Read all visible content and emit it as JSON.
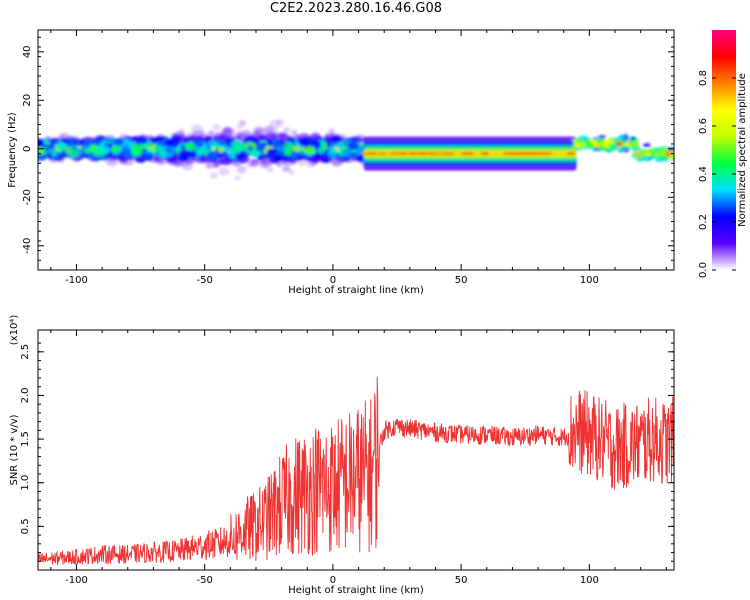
{
  "title": "C2E2.2023.280.16.46.G08",
  "chart_data": [
    {
      "type": "heatmap",
      "xlabel": "Height of straight line (km)",
      "ylabel": "Frequency (Hz)",
      "xlim": [
        -115,
        133
      ],
      "ylim": [
        -50,
        49
      ],
      "x_ticks": [
        -100,
        -50,
        0,
        50,
        100
      ],
      "y_ticks": [
        -40,
        -20,
        0,
        20,
        40
      ],
      "colorbar": {
        "label": "Normalized spectral amplitude",
        "range": [
          0.0,
          1.0
        ],
        "ticks": [
          0.0,
          0.2,
          0.4,
          0.6,
          0.8
        ],
        "tick_labels": [
          "0.0",
          "0.2",
          "0.4",
          "0.6",
          "0.8"
        ],
        "colormap": [
          "#ffffff",
          "#5b00ff",
          "#0000ff",
          "#00e0ff",
          "#00ff40",
          "#c0ff00",
          "#ffff00",
          "#ff8000",
          "#ff0000",
          "#ff0080"
        ]
      },
      "ridge": {
        "description_segments": [
          {
            "x": [
              -115,
              12
            ],
            "center_hz": 0,
            "spread_hz": 12,
            "max_amplitude": 0.65
          },
          {
            "x": [
              12,
              95
            ],
            "center_hz": -2,
            "spread_hz": 2,
            "max_amplitude": 0.85
          },
          {
            "x": [
              95,
              133
            ],
            "center_hz": 1,
            "spread_hz": 4,
            "max_amplitude": 0.9
          }
        ]
      }
    },
    {
      "type": "line",
      "xlabel": "Height of straight line (km)",
      "ylabel": "SNR (10 * v/v)",
      "y_multiplier": "(x10⁴)",
      "xlim": [
        -115,
        133
      ],
      "ylim": [
        0,
        2.75
      ],
      "x_ticks": [
        -100,
        -50,
        0,
        50,
        100
      ],
      "y_ticks": [
        0.5,
        1.0,
        1.5,
        2.0,
        2.5
      ],
      "y_tick_labels": [
        "0.5",
        "1.0",
        "1.5",
        "2.0",
        "2.5"
      ],
      "series_color": "#ee3333",
      "series": [
        {
          "x": [
            -115,
            -100,
            -90,
            -80,
            -70,
            -60,
            -50,
            -45,
            -40,
            -35,
            -30,
            -25,
            -20,
            -15,
            -10,
            -5,
            0,
            5,
            10,
            15,
            20,
            25,
            30,
            40,
            50,
            60,
            70,
            80,
            90,
            95,
            100,
            110,
            120,
            125,
            130,
            133
          ],
          "y": [
            0.12,
            0.15,
            0.18,
            0.18,
            0.2,
            0.22,
            0.28,
            0.3,
            0.35,
            0.45,
            0.5,
            0.6,
            0.75,
            0.85,
            0.9,
            0.95,
            0.95,
            1.0,
            1.05,
            1.1,
            1.6,
            1.65,
            1.62,
            1.58,
            1.55,
            1.55,
            1.52,
            1.55,
            1.52,
            1.6,
            1.55,
            1.4,
            1.45,
            1.5,
            1.45,
            1.5
          ]
        }
      ]
    }
  ]
}
